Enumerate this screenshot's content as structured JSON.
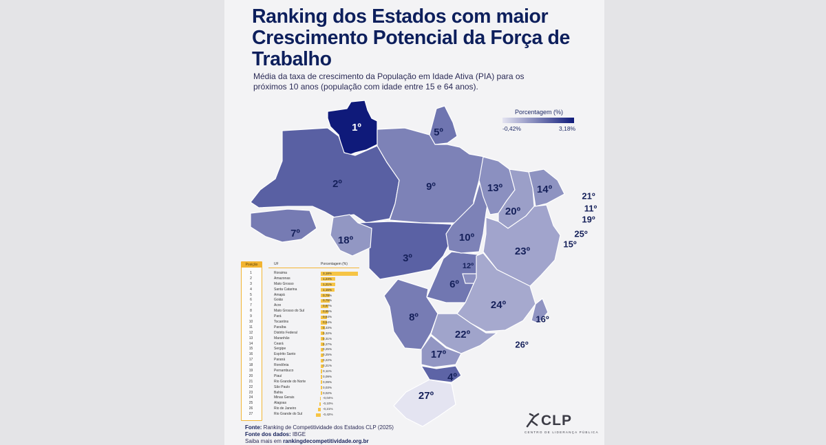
{
  "page": {
    "title": "Ranking dos Estados com maior Crescimento Potencial da Força de Trabalho",
    "subtitle": "Média da taxa de crescimento da População em Idade Ativa (PIA) para os próximos 10 anos (população com idade entre 15 e 64 anos)."
  },
  "legend": {
    "title": "Porcentagem (%)",
    "min_label": "-0,42%",
    "max_label": "3,18%",
    "min": -0.42,
    "max": 3.18,
    "color_low": "#e4e4f1",
    "color_high": "#0f1a7a"
  },
  "table": {
    "headers": {
      "position": "Posição",
      "uf": "UF",
      "percent": "Porcentagem (%)"
    },
    "accent_color": "#f2b431",
    "rows": [
      {
        "rank": "1",
        "name": "Roraima",
        "label": "3,18%",
        "value": 3.18
      },
      {
        "rank": "2",
        "name": "Amazonas",
        "label": "1,24%",
        "value": 1.24
      },
      {
        "rank": "3",
        "name": "Mato Grosso",
        "label": "1,21%",
        "value": 1.21
      },
      {
        "rank": "4",
        "name": "Santa Catarina",
        "label": "1,15%",
        "value": 1.15
      },
      {
        "rank": "5",
        "name": "Amapá",
        "label": "0,79%",
        "value": 0.79
      },
      {
        "rank": "6",
        "name": "Goiás",
        "label": "0,75%",
        "value": 0.75
      },
      {
        "rank": "7",
        "name": "Acre",
        "label": "0,67%",
        "value": 0.67
      },
      {
        "rank": "8",
        "name": "Mato Grosso do Sul",
        "label": "0,65%",
        "value": 0.65
      },
      {
        "rank": "9",
        "name": "Pará",
        "label": "0,54%",
        "value": 0.54
      },
      {
        "rank": "10",
        "name": "Tocantins",
        "label": "0,54%",
        "value": 0.54
      },
      {
        "rank": "11",
        "name": "Paraíba",
        "label": "0,33%",
        "value": 0.33
      },
      {
        "rank": "12",
        "name": "Distrito Federal",
        "label": "0,32%",
        "value": 0.32
      },
      {
        "rank": "13",
        "name": "Maranhão",
        "label": "0,31%",
        "value": 0.31
      },
      {
        "rank": "14",
        "name": "Ceará",
        "label": "0,27%",
        "value": 0.27
      },
      {
        "rank": "15",
        "name": "Sergipe",
        "label": "0,25%",
        "value": 0.25
      },
      {
        "rank": "16",
        "name": "Espírito Santo",
        "label": "0,25%",
        "value": 0.25
      },
      {
        "rank": "17",
        "name": "Paraná",
        "label": "0,22%",
        "value": 0.22
      },
      {
        "rank": "18",
        "name": "Rondônia",
        "label": "0,21%",
        "value": 0.21
      },
      {
        "rank": "19",
        "name": "Pernambuco",
        "label": "0,11%",
        "value": 0.11
      },
      {
        "rank": "20",
        "name": "Piauí",
        "label": "0,09%",
        "value": 0.09
      },
      {
        "rank": "21",
        "name": "Rio Grande do Norte",
        "label": "0,09%",
        "value": 0.09
      },
      {
        "rank": "22",
        "name": "São Paulo",
        "label": "0,03%",
        "value": 0.03
      },
      {
        "rank": "23",
        "name": "Bahia",
        "label": "0,02%",
        "value": 0.02
      },
      {
        "rank": "24",
        "name": "Minas Gerais",
        "label": "-0,04%",
        "value": -0.04
      },
      {
        "rank": "25",
        "name": "Alagoas",
        "label": "-0,10%",
        "value": -0.1
      },
      {
        "rank": "26",
        "name": "Rio de Janeiro",
        "label": "-0,21%",
        "value": -0.21
      },
      {
        "rank": "27",
        "name": "Rio Grande do Sul",
        "label": "-0,42%",
        "value": -0.42
      }
    ]
  },
  "map": {
    "states": [
      {
        "id": "RR",
        "name": "Roraima",
        "rank_label": "1º",
        "value": 3.18
      },
      {
        "id": "AM",
        "name": "Amazonas",
        "rank_label": "2º",
        "value": 1.24
      },
      {
        "id": "MT",
        "name": "Mato Grosso",
        "rank_label": "3º",
        "value": 1.21
      },
      {
        "id": "SC",
        "name": "Santa Catarina",
        "rank_label": "4º",
        "value": 1.15
      },
      {
        "id": "AP",
        "name": "Amapá",
        "rank_label": "5º",
        "value": 0.79
      },
      {
        "id": "GO",
        "name": "Goiás",
        "rank_label": "6º",
        "value": 0.75
      },
      {
        "id": "AC",
        "name": "Acre",
        "rank_label": "7º",
        "value": 0.67
      },
      {
        "id": "MS",
        "name": "Mato Grosso do Sul",
        "rank_label": "8º",
        "value": 0.65
      },
      {
        "id": "PA",
        "name": "Pará",
        "rank_label": "9º",
        "value": 0.54
      },
      {
        "id": "TO",
        "name": "Tocantins",
        "rank_label": "10º",
        "value": 0.54
      },
      {
        "id": "DF",
        "name": "Distrito Federal",
        "rank_label": "12º",
        "value": 0.32
      },
      {
        "id": "MA",
        "name": "Maranhão",
        "rank_label": "13º",
        "value": 0.31
      },
      {
        "id": "CE",
        "name": "Ceará",
        "rank_label": "14º",
        "value": 0.27
      },
      {
        "id": "ES",
        "name": "Espírito Santo",
        "rank_label": "16º",
        "value": 0.25
      },
      {
        "id": "PR",
        "name": "Paraná",
        "rank_label": "17º",
        "value": 0.22
      },
      {
        "id": "RO",
        "name": "Rondônia",
        "rank_label": "18º",
        "value": 0.21
      },
      {
        "id": "PI",
        "name": "Piauí",
        "rank_label": "20º",
        "value": 0.09
      },
      {
        "id": "SP",
        "name": "São Paulo",
        "rank_label": "22º",
        "value": 0.03
      },
      {
        "id": "BA",
        "name": "Bahia",
        "rank_label": "23º",
        "value": 0.02
      },
      {
        "id": "MG",
        "name": "Minas Gerais",
        "rank_label": "24º",
        "value": -0.04
      },
      {
        "id": "RS",
        "name": "Rio Grande do Sul",
        "rank_label": "27º",
        "value": -0.42
      }
    ],
    "outside_labels": [
      {
        "id": "RN",
        "rank_label": "21º"
      },
      {
        "id": "PB",
        "rank_label": "11º"
      },
      {
        "id": "PE",
        "rank_label": "19º"
      },
      {
        "id": "AL",
        "rank_label": "25º"
      },
      {
        "id": "SE",
        "rank_label": "15º"
      },
      {
        "id": "ES",
        "rank_label": "16º"
      },
      {
        "id": "RJ",
        "rank_label": "26º"
      }
    ]
  },
  "footer": {
    "source_label": "Fonte:",
    "source_text": "Ranking de Competitividade dos Estados CLP (2025)",
    "data_label": "Fonte dos dados:",
    "data_text": "IBGE",
    "more_text": "Saiba mais em",
    "more_link": "rankingdecompetitividade.org.br"
  },
  "logo": {
    "name": "CLP",
    "subtitle": "CENTRO DE LIDERANÇA PÚBLICA"
  }
}
